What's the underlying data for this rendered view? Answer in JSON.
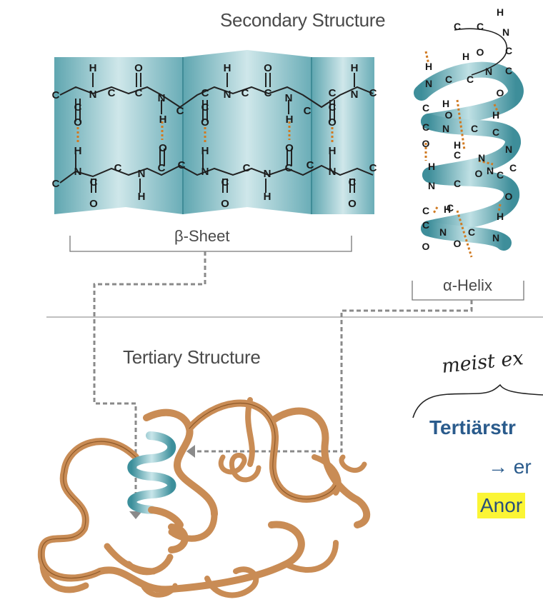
{
  "titles": {
    "secondary": "Secondary Structure",
    "tertiary": "Tertiary Structure"
  },
  "labels": {
    "beta_sheet": "β-Sheet",
    "alpha_helix": "α-Helix"
  },
  "annotations": {
    "handwriting": "meist ex",
    "tertiary_de": "Tertiärstr",
    "arrow_line": "→ er",
    "highlight": "Anor"
  },
  "atoms": {
    "C": "C",
    "N": "N",
    "H": "H",
    "O": "O"
  },
  "colors": {
    "sheet": "#93c5cc",
    "sheet_dark": "#4f9aa6",
    "ribbon": "#c98c55",
    "ribbon_dark": "#8f5a2a",
    "hbond": "#d07a22",
    "dashed": "#8a8a8a",
    "note_blue": "#2a5b8c",
    "highlight": "#fbf535"
  }
}
